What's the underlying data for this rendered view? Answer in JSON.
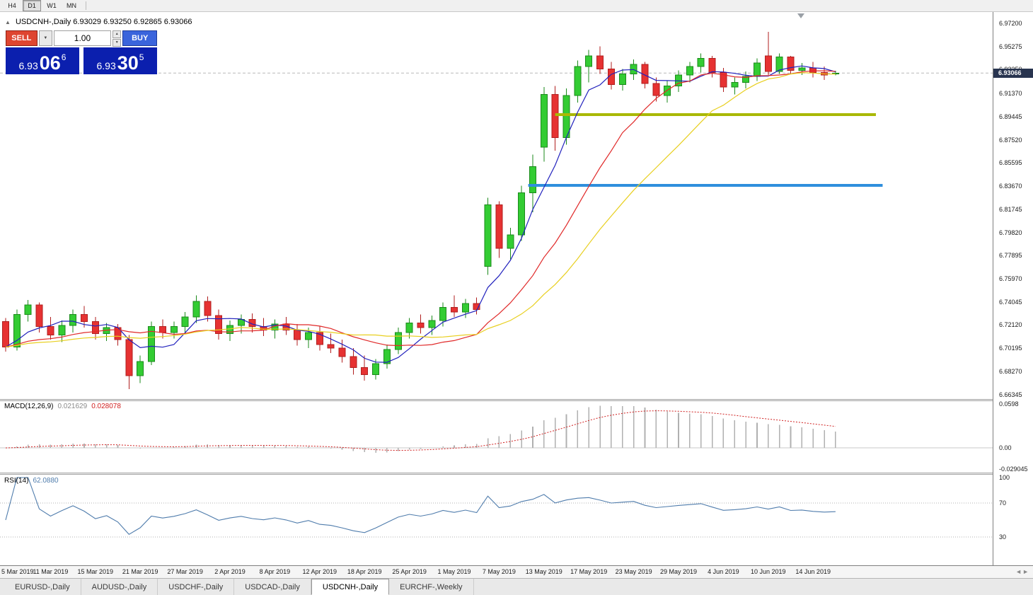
{
  "toolbar": {
    "timeframes": [
      {
        "label": "H4",
        "active": false
      },
      {
        "label": "D1",
        "active": true
      },
      {
        "label": "W1",
        "active": false
      },
      {
        "label": "MN",
        "active": false
      }
    ]
  },
  "chart_header": {
    "collapse_icon": "▲",
    "symbol_title": "USDCNH-,Daily",
    "ohlc": "6.93029 6.93250 6.92865 6.93066"
  },
  "trade_panel": {
    "sell_label": "SELL",
    "buy_label": "BUY",
    "volume": "1.00",
    "dropdown_icon": "▼",
    "stepper_up": "▲",
    "stepper_down": "▼",
    "sell_price": {
      "main": "6.93",
      "pips": "06",
      "sup": "6"
    },
    "buy_price": {
      "main": "6.93",
      "pips": "30",
      "sup": "5"
    },
    "colors": {
      "sell_button": "#de4530",
      "buy_button": "#3a64dc",
      "price_display_bg": "#0b1fae"
    }
  },
  "indicators": {
    "macd": {
      "label": "MACD(12,26,9)",
      "value_main": "0.021629",
      "value_signal": "0.028078",
      "axis_ticks": [
        "0.0598",
        "0.00",
        "-0.029045"
      ]
    },
    "rsi": {
      "label": "RSI(14)",
      "value": "62.0880",
      "axis_ticks": [
        "100",
        "70",
        "30"
      ]
    }
  },
  "price_axis": {
    "ticks": [
      "6.97200",
      "6.95275",
      "6.93350",
      "6.91370",
      "6.89445",
      "6.87520",
      "6.85595",
      "6.83670",
      "6.81745",
      "6.79820",
      "6.77895",
      "6.75970",
      "6.74045",
      "6.72120",
      "6.70195",
      "6.68270",
      "6.66345"
    ],
    "current_badge": "6.93066",
    "badge_bg": "#28344f"
  },
  "time_axis": {
    "labels": [
      {
        "bar": 0,
        "text": "5 Mar 2019"
      },
      {
        "bar": 4,
        "text": "11 Mar 2019"
      },
      {
        "bar": 8,
        "text": "15 Mar 2019"
      },
      {
        "bar": 12,
        "text": "21 Mar 2019"
      },
      {
        "bar": 16,
        "text": "27 Mar 2019"
      },
      {
        "bar": 20,
        "text": "2 Apr 2019"
      },
      {
        "bar": 24,
        "text": "8 Apr 2019"
      },
      {
        "bar": 28,
        "text": "12 Apr 2019"
      },
      {
        "bar": 32,
        "text": "18 Apr 2019"
      },
      {
        "bar": 36,
        "text": "25 Apr 2019"
      },
      {
        "bar": 40,
        "text": "1 May 2019"
      },
      {
        "bar": 44,
        "text": "7 May 2019"
      },
      {
        "bar": 48,
        "text": "13 May 2019"
      },
      {
        "bar": 52,
        "text": "17 May 2019"
      },
      {
        "bar": 56,
        "text": "23 May 2019"
      },
      {
        "bar": 60,
        "text": "29 May 2019"
      },
      {
        "bar": 64,
        "text": "4 Jun 2019"
      },
      {
        "bar": 68,
        "text": "10 Jun 2019"
      },
      {
        "bar": 72,
        "text": "14 Jun 2019"
      }
    ],
    "nav_left_icon": "◄",
    "nav_right_icon": "►"
  },
  "tabs": [
    {
      "label": "EURUSD-,Daily",
      "active": false
    },
    {
      "label": "AUDUSD-,Daily",
      "active": false
    },
    {
      "label": "USDCHF-,Daily",
      "active": false
    },
    {
      "label": "USDCAD-,Daily",
      "active": false
    },
    {
      "label": "USDCNH-,Daily",
      "active": true
    },
    {
      "label": "EURCHF-,Weekly",
      "active": false
    }
  ],
  "chart_data": {
    "type": "candlestick",
    "symbol": "USDCNH",
    "timeframe": "Daily",
    "ylim": [
      6.6597,
      6.9814
    ],
    "current_price": 6.93066,
    "candles_dohlc": [
      [
        "2019-03-05",
        6.724,
        6.727,
        6.699,
        6.703
      ],
      [
        "2019-03-06",
        6.703,
        6.734,
        6.7,
        6.73
      ],
      [
        "2019-03-07",
        6.73,
        6.742,
        6.724,
        6.738
      ],
      [
        "2019-03-08",
        6.738,
        6.74,
        6.715,
        6.72
      ],
      [
        "2019-03-11",
        6.72,
        6.728,
        6.709,
        6.713
      ],
      [
        "2019-03-12",
        6.713,
        6.725,
        6.707,
        6.721
      ],
      [
        "2019-03-13",
        6.721,
        6.734,
        6.715,
        6.73
      ],
      [
        "2019-03-14",
        6.73,
        6.737,
        6.719,
        6.724
      ],
      [
        "2019-03-15",
        6.724,
        6.728,
        6.709,
        6.714
      ],
      [
        "2019-03-18",
        6.714,
        6.723,
        6.708,
        6.719
      ],
      [
        "2019-03-19",
        6.719,
        6.722,
        6.704,
        6.709
      ],
      [
        "2019-03-20",
        6.709,
        6.713,
        6.668,
        6.679
      ],
      [
        "2019-03-21",
        6.679,
        6.696,
        6.673,
        6.691
      ],
      [
        "2019-03-22",
        6.691,
        6.724,
        6.688,
        6.72
      ],
      [
        "2019-03-25",
        6.72,
        6.726,
        6.71,
        6.715
      ],
      [
        "2019-03-26",
        6.715,
        6.724,
        6.71,
        6.72
      ],
      [
        "2019-03-27",
        6.72,
        6.732,
        6.715,
        6.728
      ],
      [
        "2019-03-28",
        6.728,
        6.746,
        6.723,
        6.741
      ],
      [
        "2019-03-29",
        6.741,
        6.745,
        6.724,
        6.729
      ],
      [
        "2019-04-01",
        6.729,
        6.734,
        6.709,
        6.714
      ],
      [
        "2019-04-02",
        6.714,
        6.725,
        6.708,
        6.721
      ],
      [
        "2019-04-03",
        6.721,
        6.73,
        6.714,
        6.726
      ],
      [
        "2019-04-04",
        6.726,
        6.731,
        6.715,
        6.72
      ],
      [
        "2019-04-05",
        6.72,
        6.727,
        6.712,
        6.717
      ],
      [
        "2019-04-08",
        6.717,
        6.726,
        6.71,
        6.722
      ],
      [
        "2019-04-09",
        6.722,
        6.728,
        6.713,
        6.717
      ],
      [
        "2019-04-10",
        6.717,
        6.722,
        6.704,
        6.709
      ],
      [
        "2019-04-11",
        6.709,
        6.719,
        6.702,
        6.715
      ],
      [
        "2019-04-12",
        6.715,
        6.72,
        6.7,
        6.705
      ],
      [
        "2019-04-15",
        6.705,
        6.714,
        6.698,
        6.702
      ],
      [
        "2019-04-16",
        6.702,
        6.709,
        6.69,
        6.695
      ],
      [
        "2019-04-17",
        6.695,
        6.702,
        6.68,
        6.686
      ],
      [
        "2019-04-18",
        6.686,
        6.696,
        6.675,
        6.68
      ],
      [
        "2019-04-22",
        6.68,
        6.693,
        6.676,
        6.689
      ],
      [
        "2019-04-23",
        6.689,
        6.705,
        6.685,
        6.701
      ],
      [
        "2019-04-24",
        6.701,
        6.719,
        6.697,
        6.715
      ],
      [
        "2019-04-25",
        6.715,
        6.727,
        6.71,
        6.723
      ],
      [
        "2019-04-26",
        6.723,
        6.73,
        6.714,
        6.719
      ],
      [
        "2019-04-29",
        6.719,
        6.729,
        6.713,
        6.725
      ],
      [
        "2019-04-30",
        6.725,
        6.74,
        6.72,
        6.736
      ],
      [
        "2019-05-01",
        6.736,
        6.746,
        6.728,
        6.732
      ],
      [
        "2019-05-02",
        6.732,
        6.743,
        6.727,
        6.739
      ],
      [
        "2019-05-03",
        6.739,
        6.744,
        6.73,
        6.734
      ],
      [
        "2019-05-06",
        6.77,
        6.827,
        6.763,
        6.821
      ],
      [
        "2019-05-07",
        6.821,
        6.824,
        6.777,
        6.785
      ],
      [
        "2019-05-08",
        6.785,
        6.802,
        6.776,
        6.796
      ],
      [
        "2019-05-09",
        6.796,
        6.837,
        6.791,
        6.831
      ],
      [
        "2019-05-10",
        6.831,
        6.863,
        6.815,
        6.853
      ],
      [
        "2019-05-13",
        6.869,
        6.919,
        6.857,
        6.913
      ],
      [
        "2019-05-14",
        6.913,
        6.92,
        6.866,
        6.877
      ],
      [
        "2019-05-15",
        6.877,
        6.918,
        6.871,
        6.912
      ],
      [
        "2019-05-16",
        6.912,
        6.941,
        6.906,
        6.936
      ],
      [
        "2019-05-17",
        6.936,
        6.95,
        6.923,
        6.945
      ],
      [
        "2019-05-20",
        6.945,
        6.953,
        6.93,
        6.934
      ],
      [
        "2019-05-21",
        6.934,
        6.94,
        6.917,
        6.921
      ],
      [
        "2019-05-22",
        6.921,
        6.934,
        6.916,
        6.93
      ],
      [
        "2019-05-23",
        6.93,
        6.942,
        6.925,
        6.938
      ],
      [
        "2019-05-24",
        6.938,
        6.94,
        6.918,
        6.922
      ],
      [
        "2019-05-27",
        6.922,
        6.927,
        6.907,
        6.912
      ],
      [
        "2019-05-28",
        6.912,
        6.924,
        6.906,
        6.92
      ],
      [
        "2019-05-29",
        6.92,
        6.933,
        6.915,
        6.929
      ],
      [
        "2019-05-30",
        6.929,
        6.94,
        6.923,
        6.936
      ],
      [
        "2019-05-31",
        6.936,
        6.947,
        6.931,
        6.943
      ],
      [
        "2019-06-03",
        6.943,
        6.945,
        6.927,
        6.931
      ],
      [
        "2019-06-04",
        6.931,
        6.935,
        6.915,
        6.919
      ],
      [
        "2019-06-05",
        6.919,
        6.927,
        6.913,
        6.923
      ],
      [
        "2019-06-06",
        6.923,
        6.932,
        6.918,
        6.928
      ],
      [
        "2019-06-07",
        6.928,
        6.943,
        6.924,
        6.939
      ],
      [
        "2019-06-10",
        6.945,
        6.965,
        6.929,
        6.932
      ],
      [
        "2019-06-11",
        6.932,
        6.947,
        6.93,
        6.944
      ],
      [
        "2019-06-12",
        6.944,
        6.945,
        6.93,
        6.933
      ],
      [
        "2019-06-13",
        6.933,
        6.939,
        6.929,
        6.935
      ],
      [
        "2019-06-14",
        6.935,
        6.94,
        6.927,
        6.931
      ],
      [
        "2019-06-17",
        6.931,
        6.936,
        6.925,
        6.929
      ],
      [
        "2019-06-18",
        6.93029,
        6.9325,
        6.92865,
        6.93066
      ]
    ],
    "moving_averages": [
      {
        "name": "fast",
        "method": "sma",
        "period": 5,
        "color": "#2121bd"
      },
      {
        "name": "medium",
        "method": "sma",
        "period": 13,
        "color": "#e02828"
      },
      {
        "name": "slow",
        "method": "sma",
        "period": 21,
        "color": "#e8cf1e"
      }
    ],
    "horizontal_rays": [
      {
        "price": 6.8961,
        "from_bar": 49.0,
        "to_bar": 77.6,
        "color": "#a9b804",
        "width": 4
      },
      {
        "price": 6.8373,
        "from_bar": 46.6,
        "to_bar": 78.2,
        "color": "#2f8fdd",
        "width": 4
      }
    ],
    "macd": {
      "fast": 12,
      "slow": 26,
      "signal_period": 9,
      "ylim": [
        -0.0337,
        0.0637
      ],
      "histogram_color": "#b0b0b0",
      "signal_color": "#d02020",
      "zero_line_color": "#c8c8c8",
      "current_main": 0.021629,
      "current_signal": 0.028078
    },
    "rsi": {
      "period": 14,
      "ylim": [
        -3.3,
        103.3
      ],
      "levels": [
        70,
        30
      ],
      "line_color": "#4f7cac",
      "level_color": "#b0b0b0",
      "current": 62.088
    },
    "colors": {
      "up_fill": "#33cc33",
      "up_stroke": "#1b8a1b",
      "down_fill": "#e63232",
      "down_stroke": "#b01f1f",
      "bid_line": "#b8b8b8"
    }
  }
}
